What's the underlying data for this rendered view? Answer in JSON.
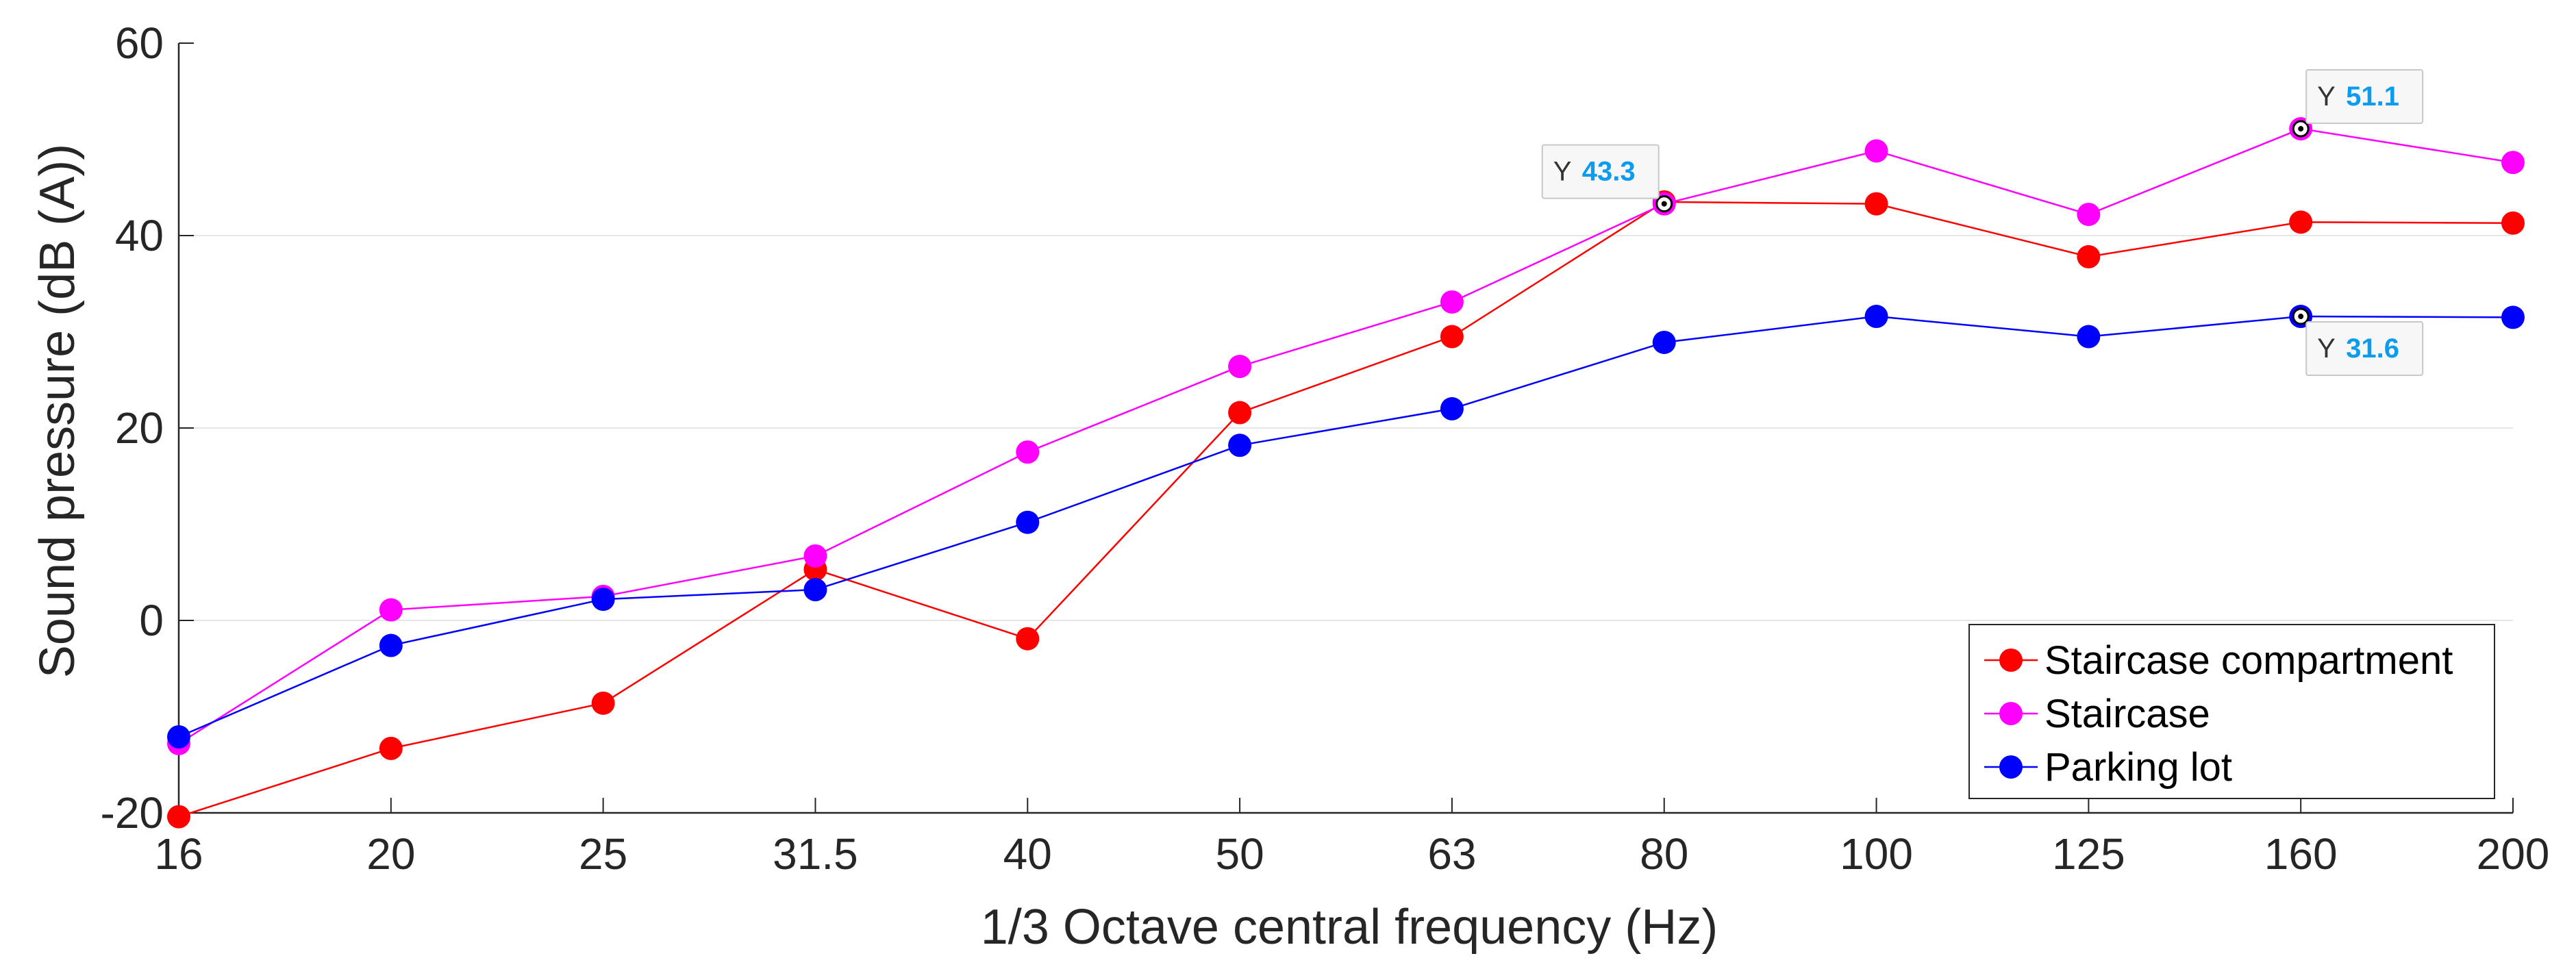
{
  "chart_data": {
    "type": "line",
    "title": "",
    "xlabel": "1/3 Octave central frequency (Hz)",
    "ylabel": "Sound pressure (dB (A))",
    "categories": [
      "16",
      "20",
      "25",
      "31.5",
      "40",
      "50",
      "63",
      "80",
      "100",
      "125",
      "160",
      "200"
    ],
    "ylim": [
      -20,
      60
    ],
    "yticks": [
      "-20",
      "0",
      "20",
      "40",
      "60"
    ],
    "grid": "horizontal",
    "legend_position": "bottom-right",
    "series": [
      {
        "name": "Staircase compartment",
        "color": "#ff0000",
        "values": [
          -20.4,
          -13.3,
          -8.6,
          5.3,
          -1.9,
          21.6,
          29.5,
          43.5,
          43.3,
          37.8,
          41.4,
          41.3
        ]
      },
      {
        "name": "Staircase",
        "color": "#ff00ff",
        "values": [
          -12.8,
          1.1,
          2.5,
          6.7,
          17.5,
          26.4,
          33.1,
          43.3,
          48.8,
          42.2,
          51.1,
          47.6
        ]
      },
      {
        "name": "Parking lot",
        "color": "#0000ff",
        "values": [
          -12.1,
          -2.6,
          2.2,
          3.2,
          10.2,
          18.2,
          22.0,
          28.9,
          31.6,
          29.5,
          31.6,
          31.5
        ]
      }
    ],
    "datatips": [
      {
        "series": 1,
        "index": 7,
        "y_label": "Y",
        "value": "43.3",
        "placement": "above-left"
      },
      {
        "series": 1,
        "index": 10,
        "y_label": "Y",
        "value": "51.1",
        "placement": "above-right"
      },
      {
        "series": 2,
        "index": 10,
        "y_label": "Y",
        "value": "31.6",
        "placement": "below-right"
      }
    ],
    "datatip_value_color": "#0b9cf0"
  }
}
